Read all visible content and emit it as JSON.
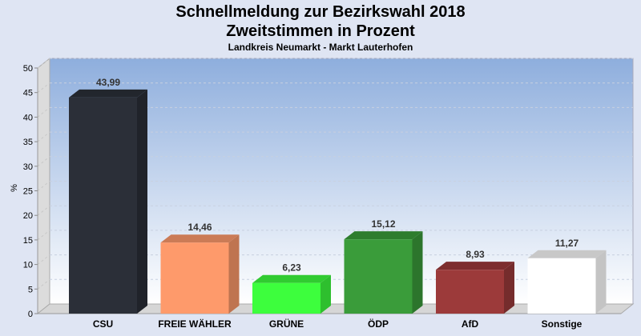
{
  "chart_data": {
    "type": "bar",
    "title": "Schnellmeldung zur Bezirkswahl 2018",
    "subtitle": "Zweitstimmen in Prozent",
    "subsubtitle": "Landkreis Neumarkt - Markt Lauterhofen",
    "ylabel": "%",
    "xlabel": "",
    "ylim": [
      0,
      50
    ],
    "yticks": [
      0,
      5,
      10,
      15,
      20,
      25,
      30,
      35,
      40,
      45,
      50
    ],
    "grid": true,
    "categories": [
      "CSU",
      "FREIE WÄHLER",
      "GRÜNE",
      "ÖDP",
      "AfD",
      "Sonstige"
    ],
    "values": [
      43.99,
      14.46,
      6.23,
      15.12,
      8.93,
      11.27
    ],
    "value_labels": [
      "43,99",
      "14,46",
      "6,23",
      "15,12",
      "8,93",
      "11,27"
    ],
    "colors": [
      "#2b2f38",
      "#fe9a6b",
      "#3dfe3d",
      "#3a9c3a",
      "#9c3a3a",
      "#ffffff"
    ]
  }
}
